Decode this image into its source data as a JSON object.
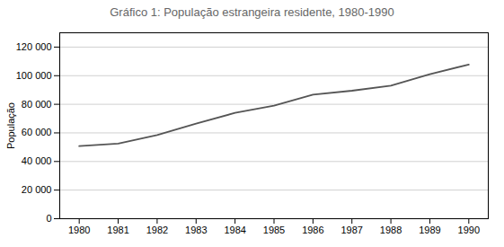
{
  "chart_data": {
    "type": "line",
    "title": "Gráfico 1: População estrangeira residente, 1980-1990",
    "ylabel": "População",
    "x": [
      1980,
      1981,
      1982,
      1983,
      1984,
      1985,
      1986,
      1987,
      1988,
      1989,
      1990
    ],
    "values": [
      50750,
      52500,
      58500,
      66500,
      74000,
      79000,
      86800,
      89500,
      93000,
      101000,
      107800
    ],
    "color": "#555555",
    "xlim": [
      1979.5,
      1990.5
    ],
    "xticks": [
      1980,
      1981,
      1982,
      1983,
      1984,
      1985,
      1986,
      1987,
      1988,
      1989,
      1990
    ],
    "ylim": [
      0,
      130000
    ],
    "yticks": [
      0,
      {
        "value": 20000,
        "label": "20 000"
      },
      {
        "value": 40000,
        "label": "40 000"
      },
      {
        "value": 60000,
        "label": "60 000"
      },
      {
        "value": 80000,
        "label": "80 000"
      },
      {
        "value": 100000,
        "label": "100 000"
      },
      {
        "value": 120000,
        "label": "120 000"
      }
    ],
    "grid": "y"
  }
}
